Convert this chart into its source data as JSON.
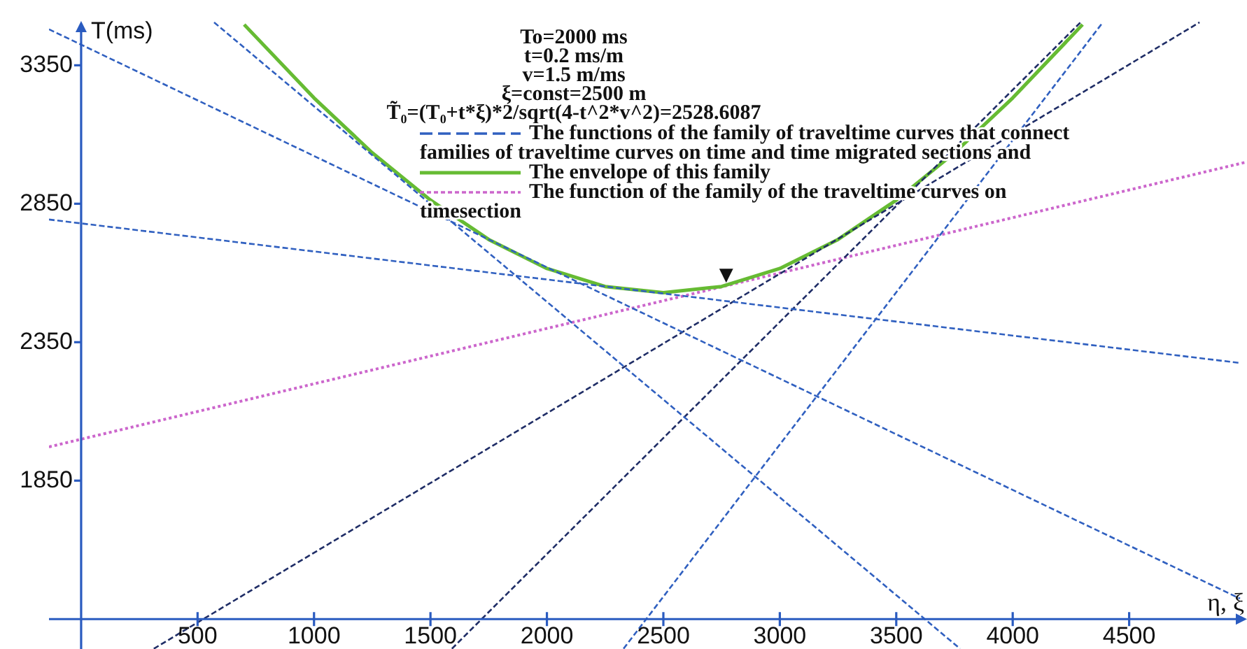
{
  "chart_data": {
    "type": "line",
    "xlabel": "η, ξ",
    "ylabel": "T(ms)",
    "annotations": [
      "To=2000 ms",
      "t=0.2 ms/m",
      "v=1.5 m/ms",
      "ξ=const=2500 m",
      "T̃₀=(T₀+t*ξ)*2/sqrt(4-t^2*v^2)=2528.6087",
      {
        "text": "▼",
        "x": 2770,
        "y": 2556
      }
    ],
    "xlim": [
      -138,
      5006
    ],
    "ylim": [
      1242,
      3510
    ],
    "xticks": [
      500,
      1000,
      1500,
      2000,
      2500,
      3000,
      3500,
      4000,
      4500
    ],
    "yticks": [
      1850,
      2350,
      2850,
      3350
    ],
    "grid": false,
    "legend": "top",
    "marker": "none",
    "series": [
      {
        "name": "The functions of the family of traveltime curves that connect families of traveltime curves on time and time migrated sections and",
        "color": "#3060c0",
        "line_style": "dashed",
        "x": [
          -138,
          4976
        ],
        "values": [
          3480,
          1424
        ]
      },
      {
        "color": "#3060c0",
        "line_style": "dashed",
        "x": [
          -138,
          4976
        ],
        "values": [
          2793,
          2275
        ]
      },
      {
        "color": "#3060c0",
        "line_style": "dashed",
        "x": [
          571,
          3774
        ],
        "values": [
          3505,
          1243
        ]
      },
      {
        "color": "#1f2d66",
        "line_style": "dashed",
        "x": [
          312,
          4802
        ],
        "values": [
          1243,
          3505
        ]
      },
      {
        "color": "#1f2d66",
        "line_style": "dashed",
        "x": [
          1592,
          4291
        ],
        "values": [
          1243,
          3505
        ]
      },
      {
        "color": "#3060c0",
        "line_style": "dashed",
        "x": [
          2329,
          4387
        ],
        "values": [
          1243,
          3505
        ]
      },
      {
        "name": "The envelope of this family",
        "color": "#66bb33",
        "line_style": "solid",
        "x": [
          700,
          1000,
          1250,
          1500,
          1750,
          2000,
          2250,
          2500,
          2750,
          3000,
          3250,
          3500,
          3750,
          4000,
          4300
        ],
        "values": [
          3497,
          3232,
          3034,
          2863,
          2721,
          2616,
          2551,
          2529,
          2551,
          2616,
          2721,
          2863,
          3034,
          3232,
          3497
        ]
      },
      {
        "name": "The function of the family of the traveltime curves on timesection",
        "color": "#cc66cc",
        "line_style": "dotted",
        "x": [
          -138,
          5006
        ],
        "values": [
          1972,
          3001
        ]
      }
    ]
  }
}
